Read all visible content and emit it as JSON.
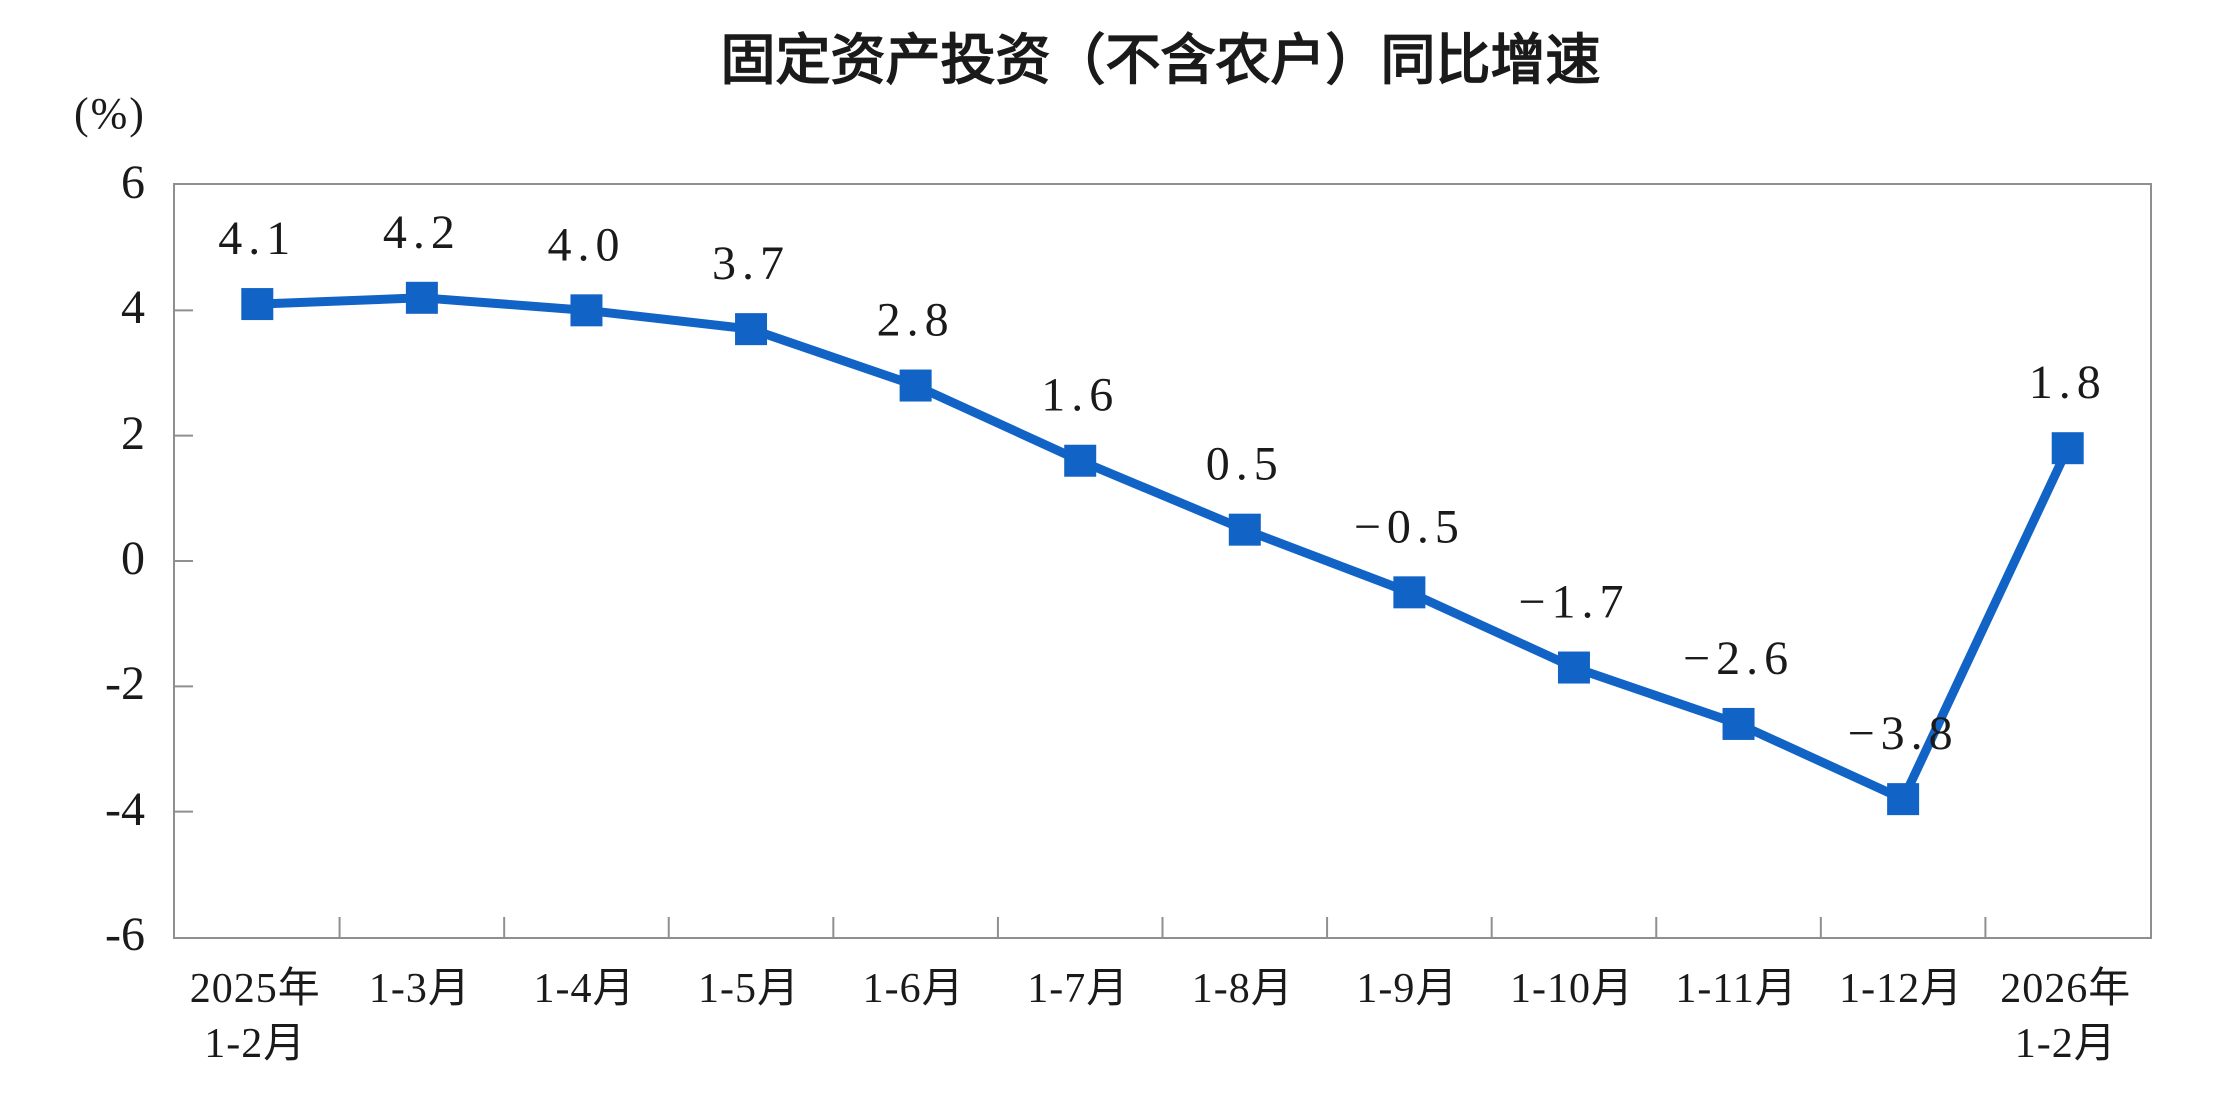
{
  "title": "固定资产投资（不含农户）同比增速",
  "unit_label": "(%)",
  "chart_data": {
    "type": "line",
    "title": "固定资产投资（不含农户）同比增速",
    "ylabel": "(%)",
    "xlabel": "",
    "categories": [
      "2025年\n1-2月",
      "1-3月",
      "1-4月",
      "1-5月",
      "1-6月",
      "1-7月",
      "1-8月",
      "1-9月",
      "1-10月",
      "1-11月",
      "1-12月",
      "2026年\n1-2月"
    ],
    "values": [
      4.1,
      4.2,
      4.0,
      3.7,
      2.8,
      1.6,
      0.5,
      -0.5,
      -1.7,
      -2.6,
      -3.8,
      1.8
    ],
    "point_labels": [
      "4.1",
      "4.2",
      "4.0",
      "3.7",
      "2.8",
      "1.6",
      "0.5",
      "−0.5",
      "−1.7",
      "−2.6",
      "−3.8",
      "1.8"
    ],
    "ylim": [
      -6,
      6
    ],
    "yticks": [
      6,
      4,
      2,
      0,
      -2,
      -4,
      -6
    ],
    "grid": false,
    "legend": "none",
    "marker": "square",
    "line_color": "#1164C5",
    "axis_color": "#8f8f8f",
    "text_color": "#1a1a1a"
  }
}
